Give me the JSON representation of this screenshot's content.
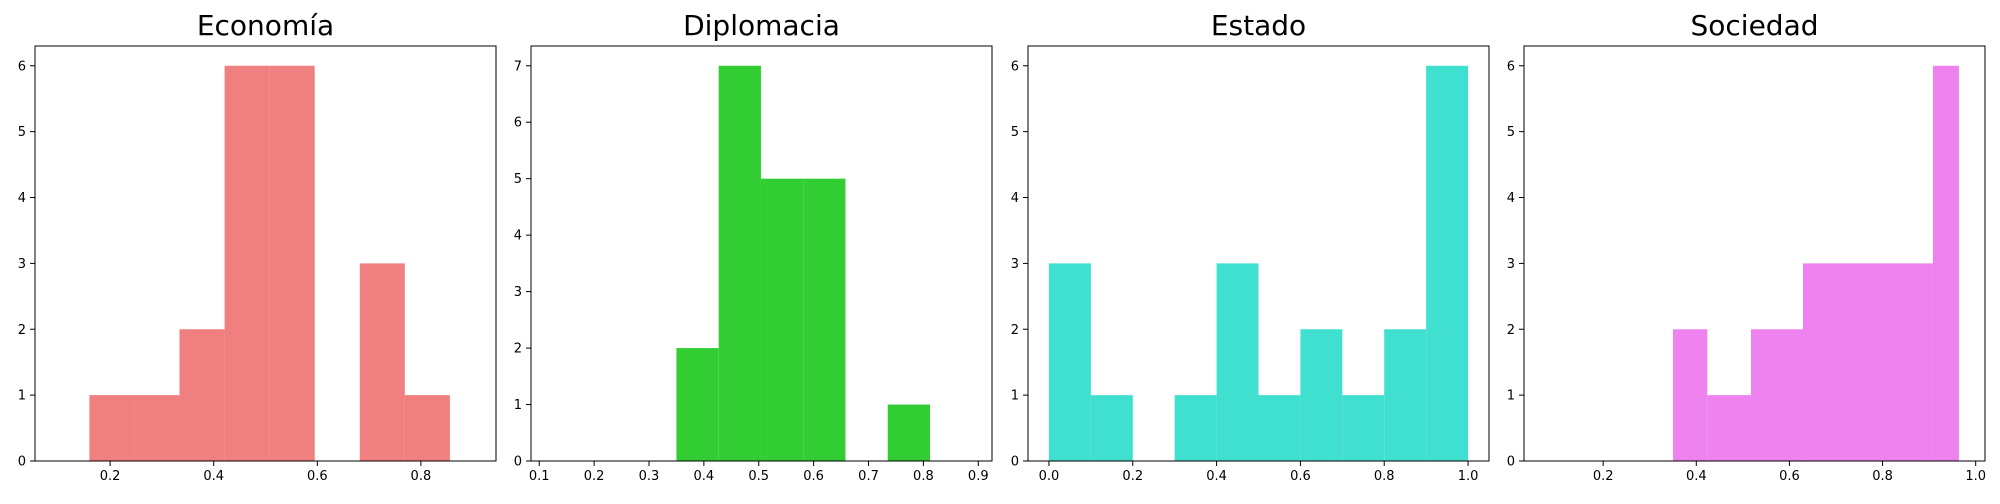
{
  "chart_data": [
    {
      "type": "bar",
      "title": "Economía",
      "color": "#f08080",
      "xlim": [
        0.055,
        0.945
      ],
      "ylim": [
        0,
        6.3
      ],
      "xticks": [
        0.2,
        0.4,
        0.6,
        0.8
      ],
      "xtick_labels": [
        "0.2",
        "0.4",
        "0.6",
        "0.8"
      ],
      "yticks": [
        0,
        1,
        2,
        3,
        4,
        5,
        6
      ],
      "ytick_labels": [
        "0",
        "1",
        "2",
        "3",
        "4",
        "5",
        "6"
      ],
      "bin_edges": [
        0.16,
        0.247,
        0.334,
        0.421,
        0.508,
        0.595,
        0.682,
        0.769,
        0.856
      ],
      "values": [
        1,
        1,
        2,
        6,
        6,
        0,
        3,
        1
      ]
    },
    {
      "type": "bar",
      "title": "Diplomacia",
      "color": "#32cd32",
      "xlim": [
        0.085,
        0.925
      ],
      "ylim": [
        0,
        7.35
      ],
      "xticks": [
        0.1,
        0.2,
        0.3,
        0.4,
        0.5,
        0.6,
        0.7,
        0.8,
        0.9
      ],
      "xtick_labels": [
        "0.1",
        "0.2",
        "0.3",
        "0.4",
        "0.5",
        "0.6",
        "0.7",
        "0.8",
        "0.9"
      ],
      "yticks": [
        0,
        1,
        2,
        3,
        4,
        5,
        6,
        7
      ],
      "ytick_labels": [
        "0",
        "1",
        "2",
        "3",
        "4",
        "5",
        "6",
        "7"
      ],
      "bin_edges": [
        0.35,
        0.427,
        0.504,
        0.581,
        0.658,
        0.735,
        0.812
      ],
      "values": [
        2,
        7,
        5,
        5,
        0,
        1
      ]
    },
    {
      "type": "bar",
      "title": "Estado",
      "color": "#40e0d0",
      "xlim": [
        -0.05,
        1.05
      ],
      "ylim": [
        0,
        6.3
      ],
      "xticks": [
        0.0,
        0.2,
        0.4,
        0.6,
        0.8,
        1.0
      ],
      "xtick_labels": [
        "0.0",
        "0.2",
        "0.4",
        "0.6",
        "0.8",
        "1.0"
      ],
      "yticks": [
        0,
        1,
        2,
        3,
        4,
        5,
        6
      ],
      "ytick_labels": [
        "0",
        "1",
        "2",
        "3",
        "4",
        "5",
        "6"
      ],
      "bin_edges": [
        0.0,
        0.1,
        0.2,
        0.3,
        0.4,
        0.5,
        0.6,
        0.7,
        0.8,
        0.9,
        1.0
      ],
      "values": [
        3,
        1,
        0,
        1,
        3,
        1,
        2,
        1,
        2,
        6
      ]
    },
    {
      "type": "bar",
      "title": "Sociedad",
      "color": "#ee82ee",
      "xlim": [
        0.03,
        1.02
      ],
      "ylim": [
        0,
        6.3
      ],
      "xticks": [
        0.2,
        0.4,
        0.6,
        0.8,
        1.0
      ],
      "xtick_labels": [
        "0.2",
        "0.4",
        "0.6",
        "0.8",
        "1.0"
      ],
      "yticks": [
        0,
        1,
        2,
        3,
        4,
        5,
        6
      ],
      "ytick_labels": [
        "0",
        "1",
        "2",
        "3",
        "4",
        "5",
        "6"
      ],
      "bin_edges": [
        0.35,
        0.4237,
        0.5175,
        0.6292,
        0.7408,
        0.8525,
        0.9082,
        0.9641
      ],
      "values": [
        2,
        1,
        2,
        3,
        3,
        3,
        6
      ]
    }
  ]
}
